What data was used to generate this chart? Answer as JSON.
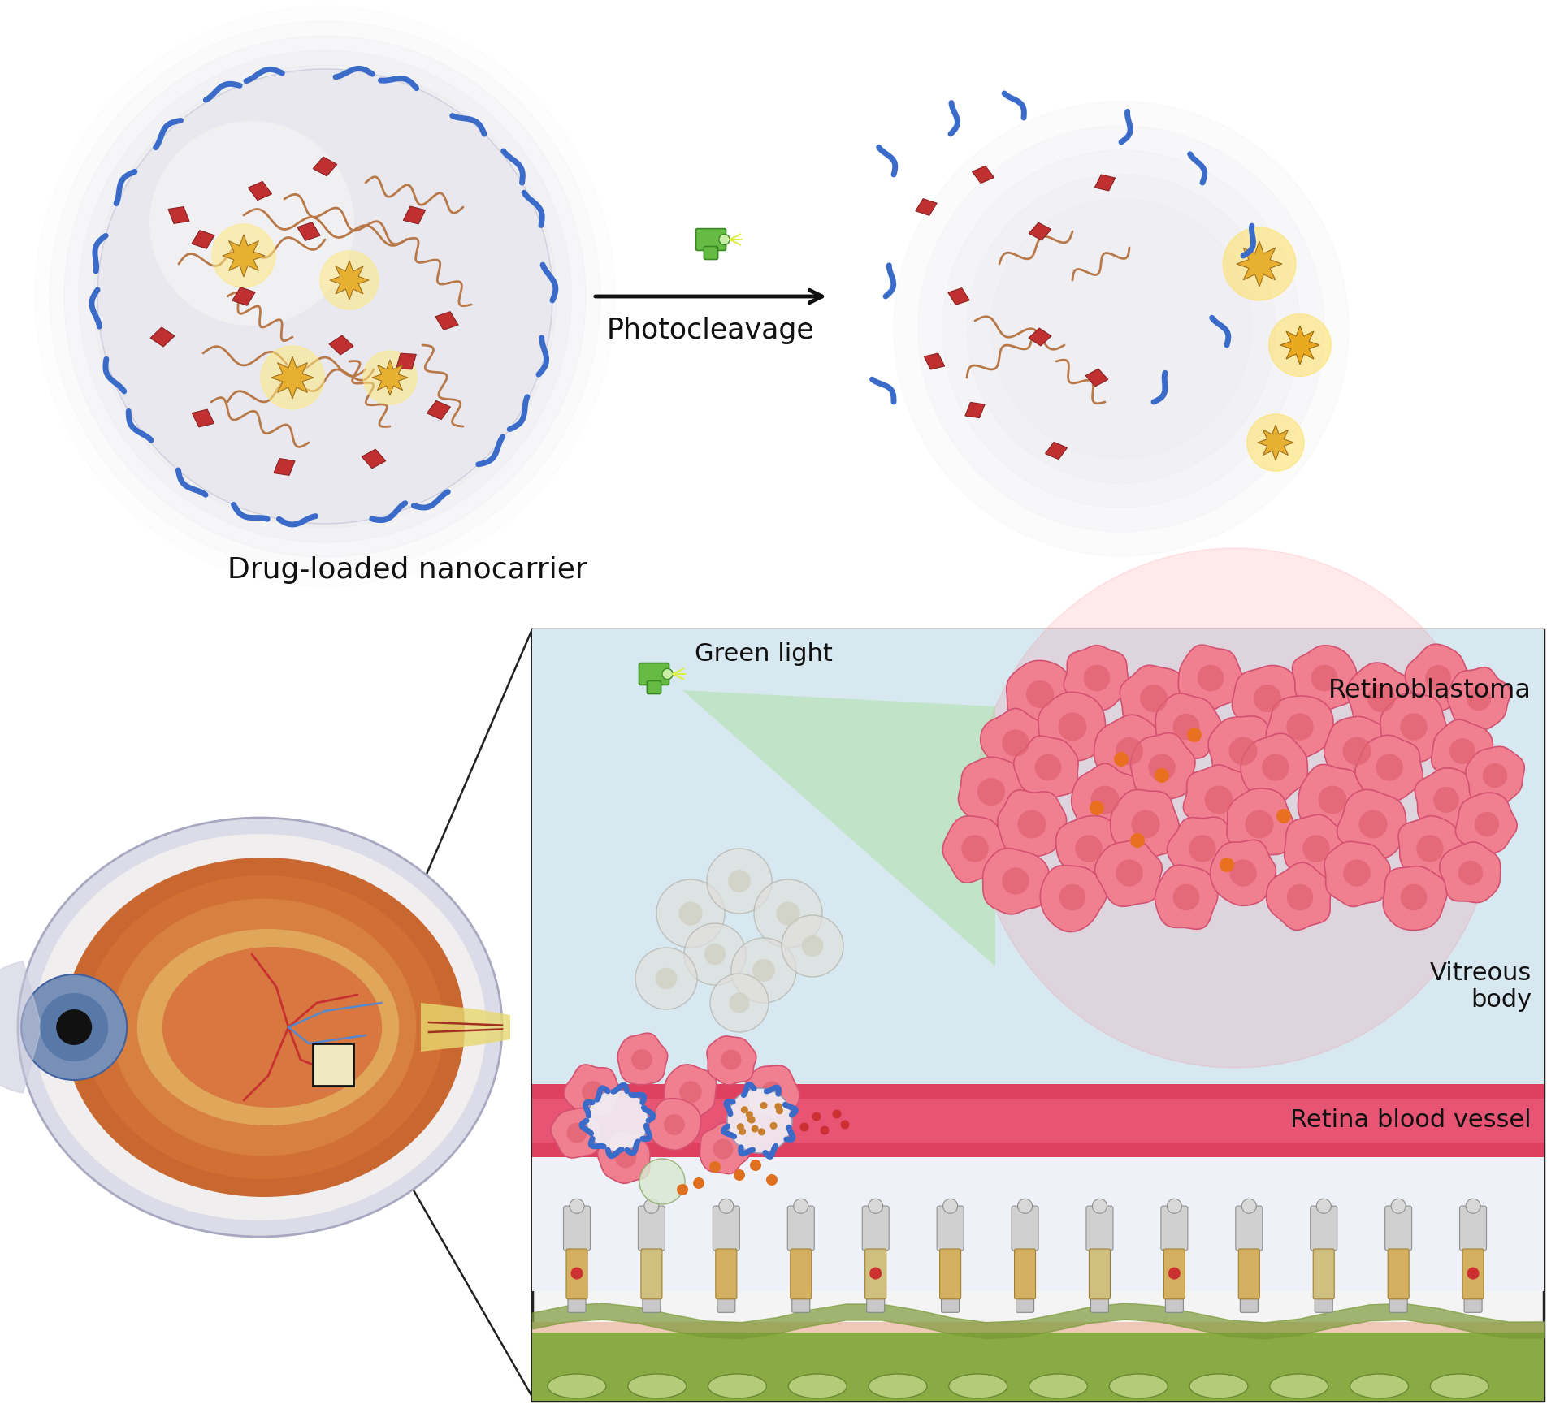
{
  "background_color": "#ffffff",
  "nanocarrier_label": "Drug-loaded nanocarrier",
  "photocleavage_label": "Photocleavage",
  "green_light_label": "Green light",
  "retinoblastoma_label": "Retinoblastoma",
  "vitreous_body_label": "Vitreous\nbody",
  "retina_vessel_label": "Retina blood vessel",
  "blue_ligand_color": "#3a6bc9",
  "drug_color": "#b83030",
  "polymer_color": "#b87848",
  "drug_core_color": "#b87030",
  "arrow_color": "#111111"
}
